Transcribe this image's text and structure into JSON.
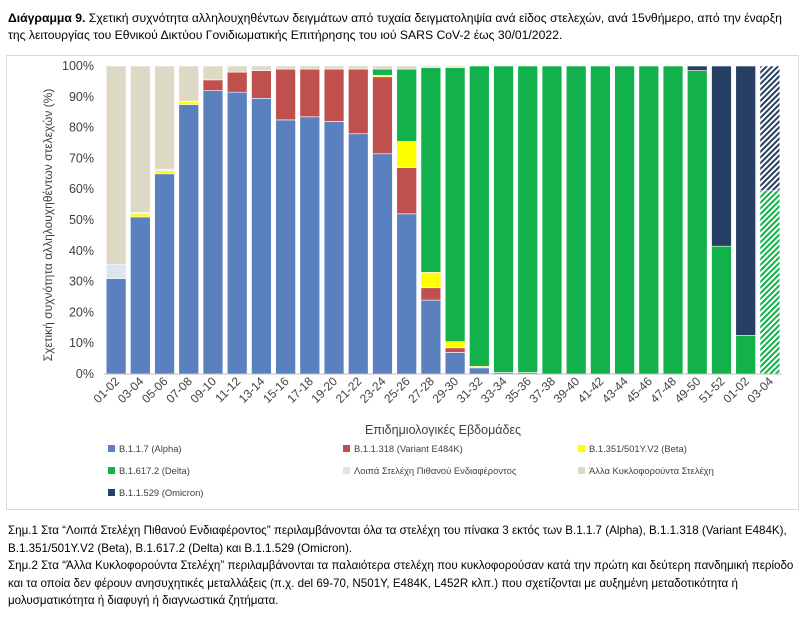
{
  "title": {
    "prefix": "Διάγραμμα 9.",
    "text": " Σχετική συχνότητα αλληλουχηθέντων δειγμάτων από τυχαία δειγματοληψία ανά είδος στελεχών, ανά 15νθήμερο, από την έναρξη της λειτουργίας του Εθνικού Δικτύου Γονιδιωματικής Επιτήρησης του ιού SARS CoV-2 έως 30/01/2022."
  },
  "notes": [
    "Σημ.1 Στα “Λοιπά Στελέχη Πιθανού Ενδιαφέροντος” περιλαμβάνονται όλα τα στελέχη του πίνακα 3 εκτός των B.1.1.7 (Alpha), B.1.1.318 (Variant E484K), B.1.351/501Y.V2 (Beta), B.1.617.2 (Delta) και B.1.1.529 (Omicron).",
    "Σημ.2 Στα “Άλλα Κυκλοφορούντα Στελέχη” περιλαμβάνονται τα παλαιότερα στελέχη που κυκλοφορούσαν κατά την πρώτη και δεύτερη πανδημική περίοδο και τα οποία δεν φέρουν ανησυχητικές μεταλλάξεις (π.χ. del 69-70, N501Y, E484K, L452R κλπ.) που σχετίζονται με αυξημένη μεταδοτικότητα ή μολυσματικότητα ή διαφυγή ή διαγνωστικά ζητήματα."
  ],
  "chart_data": {
    "type": "bar",
    "stacked": true,
    "xlabel": "Επιδημιολογικές Εβδομάδες",
    "ylabel": "Σχετική συχνότητα αλληλουχηθέντων στελεχών (%)",
    "ylim": [
      0,
      100
    ],
    "yticks": [
      "0%",
      "10%",
      "20%",
      "30%",
      "40%",
      "50%",
      "60%",
      "70%",
      "80%",
      "90%",
      "100%"
    ],
    "grid": false,
    "legend_position": "bottom",
    "categories": [
      "01-02",
      "03-04",
      "05-06",
      "07-08",
      "09-10",
      "11-12",
      "13-14",
      "15-16",
      "17-18",
      "19-20",
      "21-22",
      "23-24",
      "25-26",
      "27-28",
      "29-30",
      "31-32",
      "33-34",
      "35-36",
      "37-38",
      "39-40",
      "41-42",
      "43-44",
      "45-46",
      "47-48",
      "49-50",
      "51-52",
      "01-02",
      "03-04"
    ],
    "hatched_last_category": true,
    "series": [
      {
        "name": "B.1.1.7 (Alpha)",
        "color": "#5b80bf",
        "values": [
          31,
          51,
          65,
          87.5,
          92,
          91.5,
          89.5,
          82.5,
          83.5,
          82,
          78,
          71.5,
          52,
          24,
          7,
          2,
          0.5,
          0.5,
          0,
          0,
          0,
          0,
          0,
          0,
          0,
          0,
          0,
          0
        ]
      },
      {
        "name": "B.1.1.318 (Variant E484K)",
        "color": "#c0504d",
        "values": [
          0,
          0,
          0,
          0,
          3.5,
          6.5,
          9,
          16.5,
          15.5,
          17,
          21,
          25,
          15,
          4,
          1.5,
          0,
          0,
          0,
          0,
          0,
          0,
          0,
          0,
          0,
          0,
          0,
          0,
          0
        ]
      },
      {
        "name": "B.1.351/501Y.V2 (Beta)",
        "color": "#ffff00",
        "values": [
          0,
          1,
          1,
          1,
          0,
          0,
          0,
          0,
          0,
          0,
          0,
          0.5,
          8.5,
          5,
          2,
          0.5,
          0,
          0,
          0,
          0,
          0,
          0,
          0,
          0,
          0,
          0,
          0,
          0
        ]
      },
      {
        "name": "B.1.617.2 (Delta)",
        "color": "#12b14b",
        "values": [
          0,
          0,
          0,
          0,
          0,
          0,
          0,
          0,
          0,
          0,
          0,
          2,
          23.5,
          66.5,
          89,
          97.5,
          99.5,
          99.5,
          100,
          100,
          100,
          100,
          100,
          100,
          98.5,
          41.5,
          12.5,
          59.5
        ]
      },
      {
        "name": "Λοιπά Στελέχη Πιθανού Ενδιαφέροντος",
        "color": "#dce6f2",
        "values": [
          4.5,
          0.5,
          0.5,
          0,
          0,
          0,
          0,
          0,
          0,
          0,
          0,
          0,
          0,
          0,
          0,
          0,
          0,
          0,
          0,
          0,
          0,
          0,
          0,
          0,
          0,
          0,
          0,
          0
        ]
      },
      {
        "name": "Άλλα Κυκλοφορούντα Στελέχη",
        "color": "#ddd9c4",
        "values": [
          64.5,
          47.5,
          33.5,
          11.5,
          4.5,
          2,
          1.5,
          1,
          1,
          1,
          1,
          1,
          1,
          0.5,
          0.5,
          0,
          0,
          0,
          0,
          0,
          0,
          0,
          0,
          0,
          0,
          0,
          0,
          0
        ]
      },
      {
        "name": "B.1.1.529 (Omicron)",
        "color": "#263f63",
        "values": [
          0,
          0,
          0,
          0,
          0,
          0,
          0,
          0,
          0,
          0,
          0,
          0,
          0,
          0,
          0,
          0,
          0,
          0,
          0,
          0,
          0,
          0,
          0,
          0,
          1.5,
          58.5,
          87.5,
          40.5
        ]
      }
    ]
  }
}
